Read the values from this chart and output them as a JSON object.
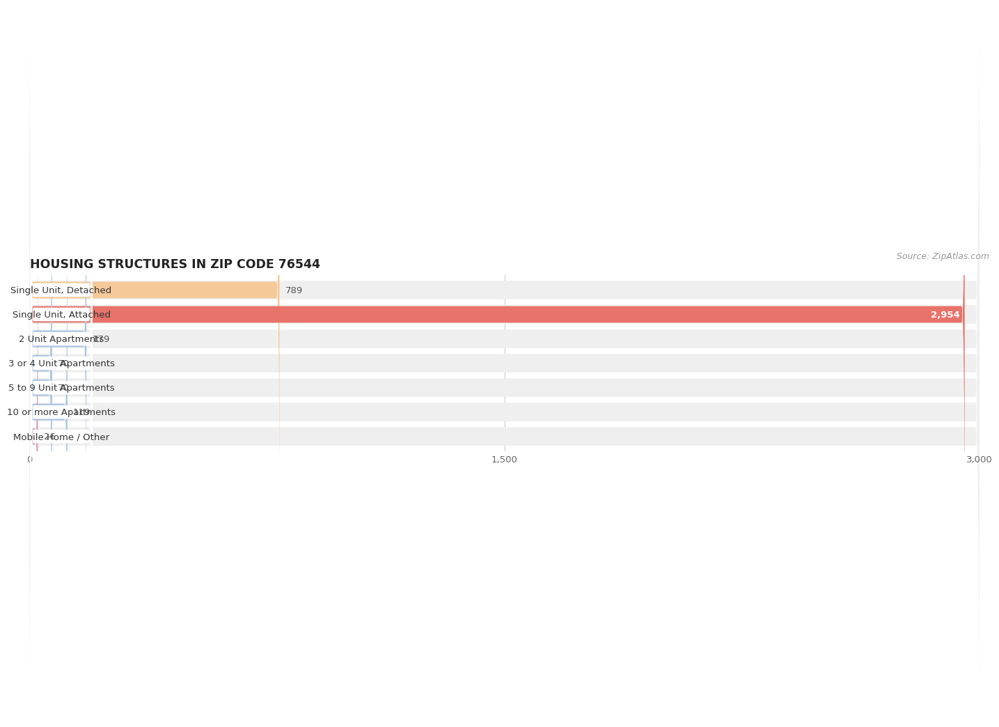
{
  "title": "HOUSING STRUCTURES IN ZIP CODE 76544",
  "source": "Source: ZipAtlas.com",
  "categories": [
    "Single Unit, Detached",
    "Single Unit, Attached",
    "2 Unit Apartments",
    "3 or 4 Unit Apartments",
    "5 to 9 Unit Apartments",
    "10 or more Apartments",
    "Mobile Home / Other"
  ],
  "values": [
    789,
    2954,
    179,
    70,
    70,
    119,
    26
  ],
  "bar_colors": [
    "#f5c99a",
    "#e8736a",
    "#aac5e2",
    "#aac5e2",
    "#aac5e2",
    "#aac5e2",
    "#d4a8c8"
  ],
  "background_color": "#ffffff",
  "row_bg_color": "#efefef",
  "xlim": [
    0,
    3000
  ],
  "xticks": [
    0,
    1500,
    3000
  ],
  "title_fontsize": 12.5,
  "label_fontsize": 9.5,
  "value_fontsize": 9.5,
  "source_fontsize": 9
}
